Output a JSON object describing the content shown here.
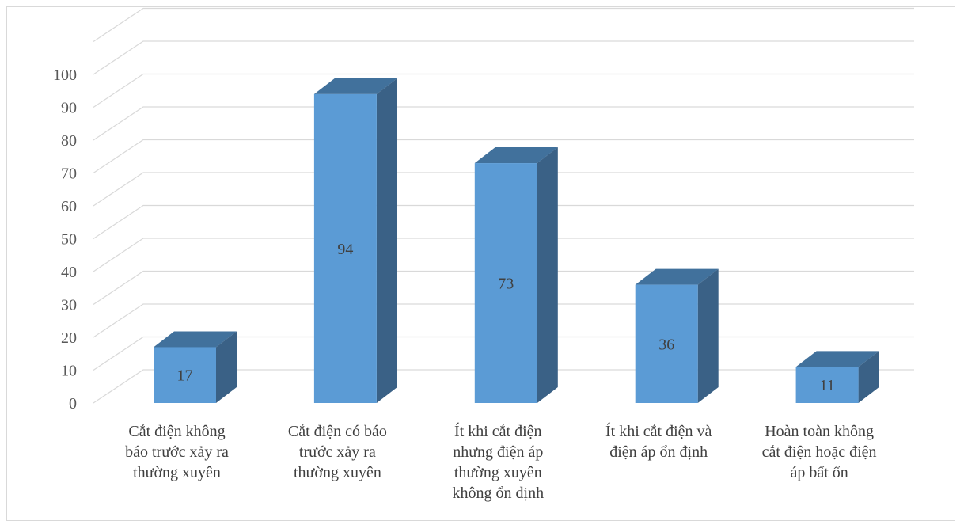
{
  "chart_data": {
    "type": "bar",
    "categories": [
      [
        "Cắt điện không",
        "báo trước xảy ra",
        "thường xuyên"
      ],
      [
        "Cắt điện có báo",
        "trước xảy ra",
        "thường xuyên"
      ],
      [
        "Ít khi cắt điện",
        "nhưng điện áp",
        "thường xuyên",
        "không ổn định"
      ],
      [
        "Ít khi cắt điện và",
        "điện áp ổn định"
      ],
      [
        "Hoàn toàn không",
        "cắt điện hoặc điện",
        "áp bất ổn"
      ]
    ],
    "values": [
      17,
      94,
      73,
      36,
      11
    ],
    "data_labels": [
      "17",
      "94",
      "73",
      "36",
      "11"
    ],
    "yticks": [
      "0",
      "10",
      "20",
      "30",
      "40",
      "50",
      "60",
      "70",
      "80",
      "90",
      "100"
    ],
    "ylim": [
      0,
      110
    ],
    "title": "",
    "xlabel": "",
    "ylabel": "",
    "grid": true,
    "legend": "none",
    "colors": {
      "front": "#5b9bd5",
      "top": "#41719c",
      "side": "#3a6186",
      "grid": "#d9d9d9"
    }
  }
}
